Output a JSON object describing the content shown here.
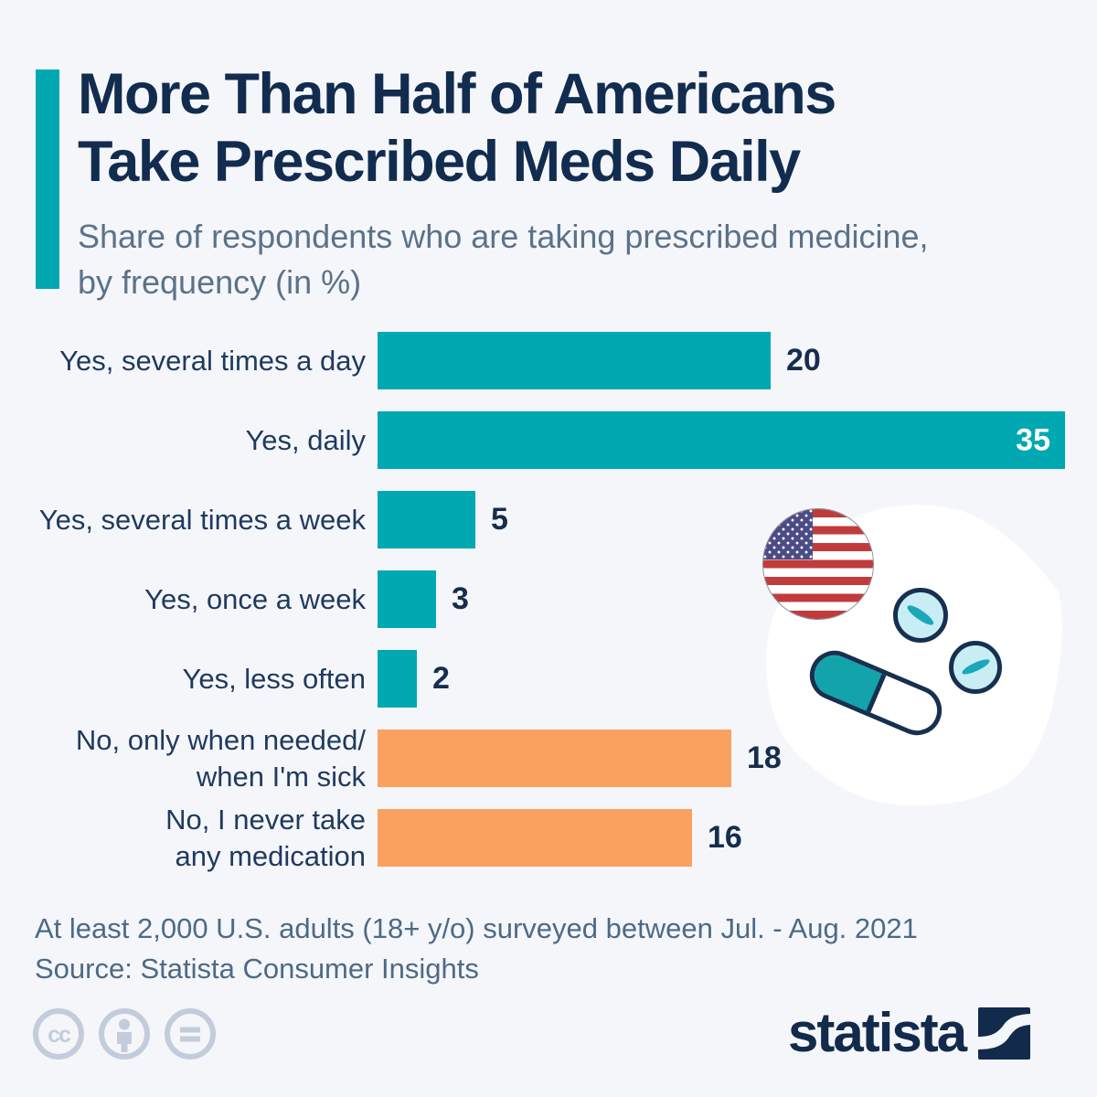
{
  "colors": {
    "background": "#f5f6fa",
    "accent_teal": "#00a8b2",
    "teal": "#00a8b2",
    "orange": "#fba15f",
    "title_navy": "#112c4e",
    "subtitle_slate": "#5b7289",
    "label_navy": "#1e3a5f",
    "value_navy": "#152e4d",
    "value_white": "#ffffff",
    "footer_slate": "#4c6a87",
    "license_gray": "#c3ccda",
    "logo_navy": "#122a4b",
    "pill_outline": "#17304f",
    "tablet_fill": "#c9edf5",
    "capsule_teal": "#12a3ab",
    "flag_red": "#c03c3c",
    "flag_blue": "#4b4c85"
  },
  "header": {
    "title": "More Than Half of Americans\nTake Prescribed Meds Daily",
    "subtitle": "Share of respondents who are taking prescribed medicine,\nby frequency (in %)"
  },
  "chart_data": {
    "type": "bar",
    "orientation": "horizontal",
    "title": "Share of respondents who are taking prescribed medicine, by frequency (in %)",
    "categories": [
      "Yes, several times a day",
      "Yes, daily",
      "Yes, several times a week",
      "Yes, once a week",
      "Yes, less often",
      "No, only when needed/\nwhen I'm sick",
      "No, I never take\nany medication"
    ],
    "values": [
      20,
      35,
      5,
      3,
      2,
      18,
      16
    ],
    "bar_colors": [
      "teal",
      "teal",
      "teal",
      "teal",
      "teal",
      "orange",
      "orange"
    ],
    "value_label_inside": [
      false,
      true,
      false,
      false,
      false,
      false,
      false
    ],
    "xlim": [
      0,
      35
    ],
    "grid": false,
    "value_labels_shown": true,
    "legend": "none"
  },
  "footer": {
    "note": "At least 2,000 U.S. adults (18+ y/o) surveyed between Jul. - Aug. 2021",
    "source": "Source: Statista Consumer Insights"
  },
  "license": {
    "icons": [
      "cc-icon",
      "attribution-person-icon",
      "equals-icon"
    ],
    "cc_text": "cc"
  },
  "branding": {
    "logo_text": "statista"
  },
  "illustration": {
    "flag": "us-flag",
    "items": [
      "capsule-pill",
      "round-tablet",
      "round-tablet"
    ]
  }
}
